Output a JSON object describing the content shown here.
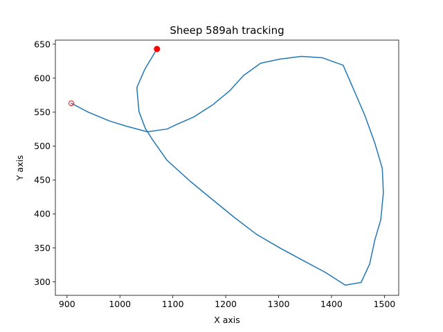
{
  "chart_data": {
    "type": "line",
    "title": "Sheep 589ah tracking",
    "xlabel": "X axis",
    "ylabel": "Y axis",
    "xlim": [
      878,
      1527
    ],
    "ylim": [
      280,
      656
    ],
    "xticks": [
      900,
      1000,
      1100,
      1200,
      1300,
      1400,
      1500
    ],
    "yticks": [
      300,
      350,
      400,
      450,
      500,
      550,
      600,
      650
    ],
    "grid": false,
    "line_color": "#1f77b4",
    "marker_color": "#ff0000",
    "series": [
      {
        "points": [
          [
            1070,
            643
          ],
          [
            1047,
            613
          ],
          [
            1032,
            586
          ],
          [
            1036,
            551
          ],
          [
            1048,
            526
          ],
          [
            1061,
            510
          ],
          [
            1089,
            479
          ],
          [
            1133,
            448
          ],
          [
            1175,
            421
          ],
          [
            1216,
            395
          ],
          [
            1258,
            370
          ],
          [
            1302,
            350
          ],
          [
            1347,
            331
          ],
          [
            1388,
            314
          ],
          [
            1426,
            295
          ],
          [
            1456,
            299
          ],
          [
            1472,
            326
          ],
          [
            1482,
            362
          ],
          [
            1493,
            391
          ],
          [
            1498,
            431
          ],
          [
            1496,
            467
          ],
          [
            1482,
            504
          ],
          [
            1463,
            545
          ],
          [
            1442,
            583
          ],
          [
            1422,
            619
          ],
          [
            1383,
            630
          ],
          [
            1343,
            632
          ],
          [
            1302,
            628
          ],
          [
            1266,
            622
          ],
          [
            1234,
            604
          ],
          [
            1207,
            581
          ],
          [
            1176,
            561
          ],
          [
            1140,
            543
          ],
          [
            1108,
            532
          ],
          [
            1089,
            525
          ],
          [
            1052,
            521
          ],
          [
            1013,
            529
          ],
          [
            980,
            537
          ],
          [
            940,
            550
          ],
          [
            908,
            563
          ]
        ]
      }
    ],
    "start_point": [
      1070,
      643
    ],
    "end_point": [
      908,
      563
    ]
  }
}
